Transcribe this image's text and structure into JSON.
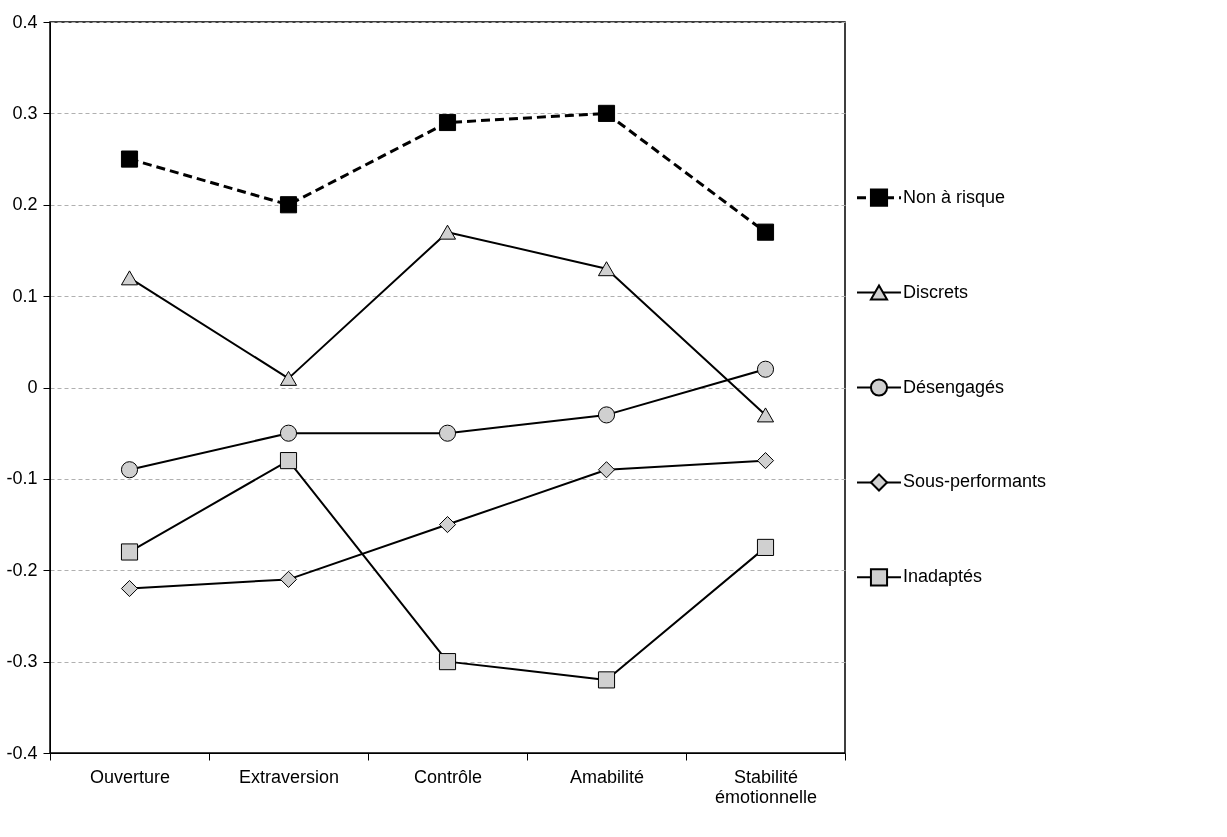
{
  "chart_data": {
    "type": "line",
    "categories": [
      "Ouverture",
      "Extraversion",
      "Contrôle",
      "Amabilité",
      "Stabilité émotionnelle"
    ],
    "ylim": [
      -0.4,
      0.4
    ],
    "yticks": [
      -0.4,
      -0.3,
      -0.2,
      -0.1,
      0,
      0.1,
      0.2,
      0.3,
      0.4
    ],
    "grid": "y",
    "legend": "right",
    "series": [
      {
        "name": "Non à risque",
        "color": "#000000",
        "marker": "square",
        "line_style": "dashed",
        "values": [
          0.25,
          0.2,
          0.29,
          0.3,
          0.17
        ]
      },
      {
        "name": "Discrets",
        "color": "#d0d0d0",
        "marker": "triangle",
        "line_style": "solid",
        "values": [
          0.12,
          0.01,
          0.17,
          0.13,
          -0.03
        ]
      },
      {
        "name": "Désengagés",
        "color": "#d0d0d0",
        "marker": "circle",
        "line_style": "solid",
        "values": [
          -0.09,
          -0.05,
          -0.05,
          -0.03,
          0.02
        ]
      },
      {
        "name": "Sous-performants",
        "color": "#d0d0d0",
        "marker": "diamond",
        "line_style": "solid",
        "values": [
          -0.22,
          -0.21,
          -0.15,
          -0.09,
          -0.08
        ]
      },
      {
        "name": "Inadaptés",
        "color": "#d0d0d0",
        "marker": "square",
        "line_style": "solid",
        "values": [
          -0.18,
          -0.08,
          -0.3,
          -0.32,
          -0.175
        ]
      }
    ]
  }
}
